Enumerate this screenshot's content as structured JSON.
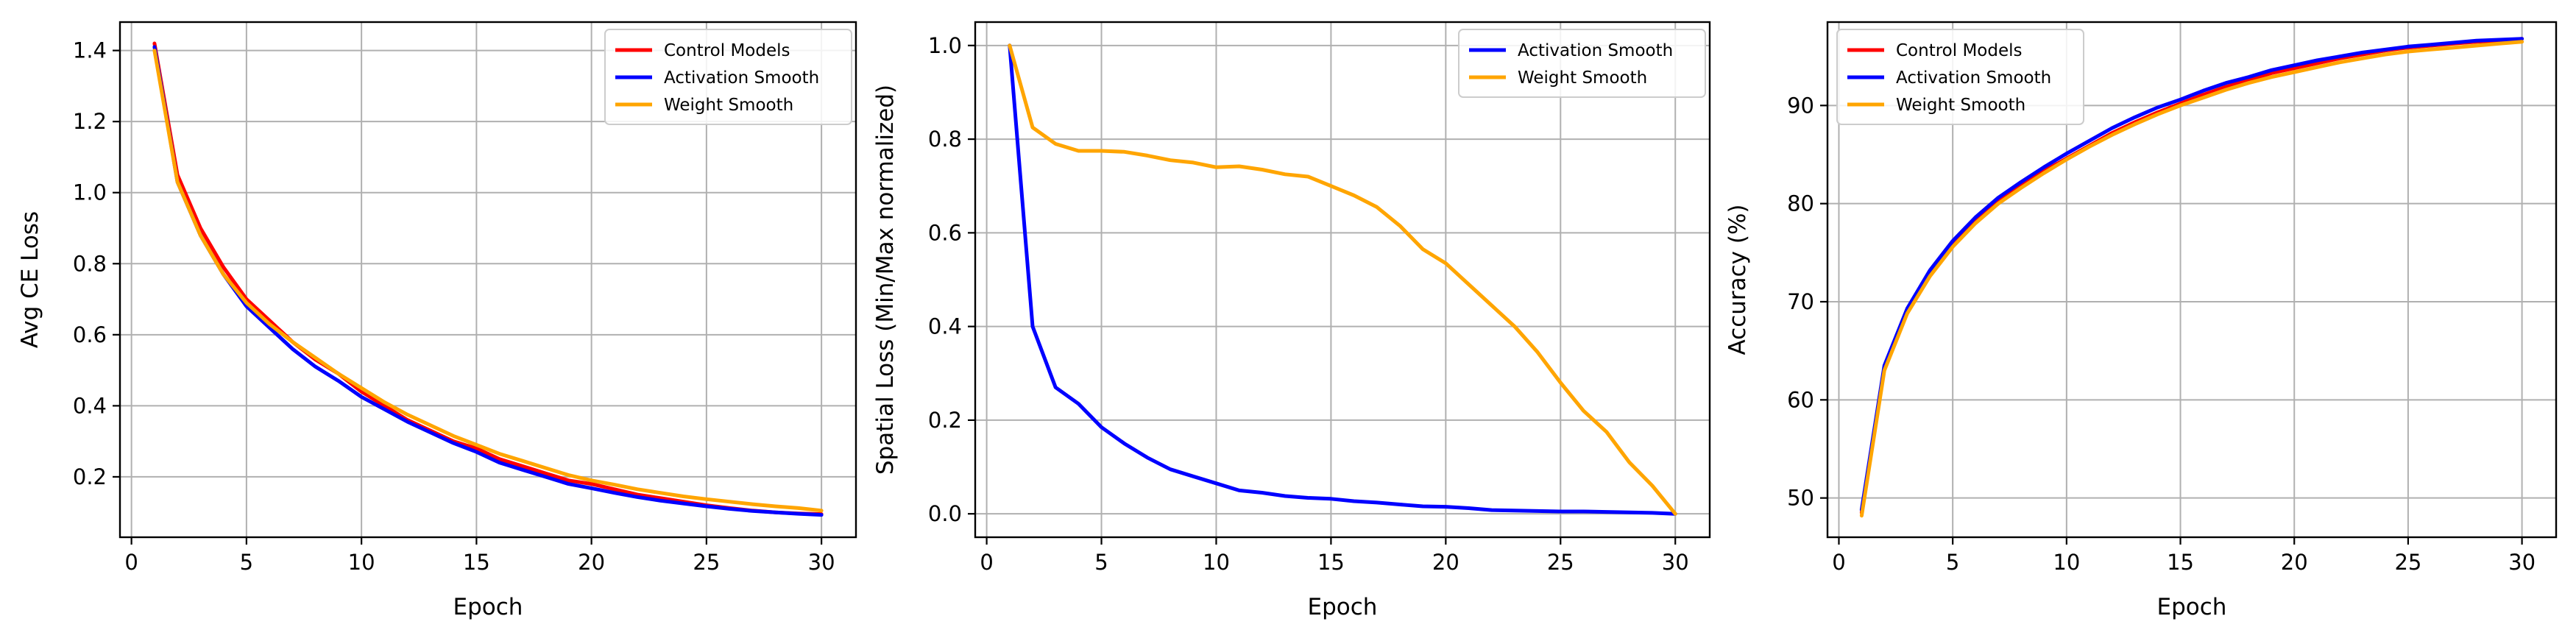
{
  "chart_data": [
    {
      "type": "line",
      "xlabel": "Epoch",
      "ylabel": "Avg CE Loss",
      "xlim": [
        -0.5,
        31.5
      ],
      "ylim": [
        0.03,
        1.48
      ],
      "xticks": [
        0,
        5,
        10,
        15,
        20,
        25,
        30
      ],
      "yticks": [
        0.2,
        0.4,
        0.6,
        0.8,
        1.0,
        1.2,
        1.4
      ],
      "ytick_decimals": 1,
      "grid": true,
      "legend_position": "upper right",
      "x": [
        1,
        2,
        3,
        4,
        5,
        6,
        7,
        8,
        9,
        10,
        11,
        12,
        13,
        14,
        15,
        16,
        17,
        18,
        19,
        20,
        21,
        22,
        23,
        24,
        25,
        26,
        27,
        28,
        29,
        30
      ],
      "series": [
        {
          "name": "Control Models",
          "color": "#ff0000",
          "values": [
            1.42,
            1.05,
            0.9,
            0.79,
            0.7,
            0.64,
            0.58,
            0.53,
            0.49,
            0.44,
            0.4,
            0.36,
            0.33,
            0.3,
            0.28,
            0.25,
            0.23,
            0.21,
            0.19,
            0.18,
            0.165,
            0.15,
            0.14,
            0.13,
            0.12,
            0.112,
            0.105,
            0.1,
            0.097,
            0.095
          ]
        },
        {
          "name": "Activation Smooth",
          "color": "#0000ff",
          "values": [
            1.41,
            1.03,
            0.88,
            0.77,
            0.68,
            0.62,
            0.56,
            0.51,
            0.47,
            0.425,
            0.39,
            0.355,
            0.325,
            0.295,
            0.27,
            0.24,
            0.22,
            0.2,
            0.18,
            0.168,
            0.155,
            0.143,
            0.133,
            0.125,
            0.117,
            0.11,
            0.104,
            0.1,
            0.096,
            0.093
          ]
        },
        {
          "name": "Weight Smooth",
          "color": "#ffa500",
          "values": [
            1.4,
            1.03,
            0.88,
            0.77,
            0.69,
            0.63,
            0.58,
            0.535,
            0.49,
            0.45,
            0.41,
            0.375,
            0.345,
            0.315,
            0.29,
            0.265,
            0.245,
            0.225,
            0.205,
            0.19,
            0.178,
            0.165,
            0.155,
            0.145,
            0.137,
            0.13,
            0.123,
            0.117,
            0.112,
            0.105
          ]
        }
      ]
    },
    {
      "type": "line",
      "xlabel": "Epoch",
      "ylabel": "Spatial Loss (Min/Max normalized)",
      "xlim": [
        -0.5,
        31.5
      ],
      "ylim": [
        -0.05,
        1.05
      ],
      "xticks": [
        0,
        5,
        10,
        15,
        20,
        25,
        30
      ],
      "yticks": [
        0.0,
        0.2,
        0.4,
        0.6,
        0.8,
        1.0
      ],
      "ytick_decimals": 1,
      "grid": true,
      "legend_position": "upper right",
      "x": [
        1,
        2,
        3,
        4,
        5,
        6,
        7,
        8,
        9,
        10,
        11,
        12,
        13,
        14,
        15,
        16,
        17,
        18,
        19,
        20,
        21,
        22,
        23,
        24,
        25,
        26,
        27,
        28,
        29,
        30
      ],
      "series": [
        {
          "name": "Activation Smooth",
          "color": "#0000ff",
          "values": [
            1.0,
            0.4,
            0.27,
            0.235,
            0.185,
            0.15,
            0.12,
            0.095,
            0.08,
            0.065,
            0.05,
            0.045,
            0.038,
            0.034,
            0.032,
            0.027,
            0.024,
            0.02,
            0.016,
            0.015,
            0.012,
            0.008,
            0.007,
            0.006,
            0.005,
            0.005,
            0.004,
            0.003,
            0.002,
            0.0
          ]
        },
        {
          "name": "Weight Smooth",
          "color": "#ffa500",
          "values": [
            1.0,
            0.825,
            0.79,
            0.775,
            0.775,
            0.773,
            0.765,
            0.755,
            0.75,
            0.74,
            0.742,
            0.735,
            0.725,
            0.72,
            0.7,
            0.68,
            0.655,
            0.615,
            0.565,
            0.535,
            0.49,
            0.445,
            0.4,
            0.345,
            0.28,
            0.22,
            0.175,
            0.11,
            0.06,
            0.0
          ]
        }
      ]
    },
    {
      "type": "line",
      "xlabel": "Epoch",
      "ylabel": "Accuracy (%)",
      "xlim": [
        -0.5,
        31.5
      ],
      "ylim": [
        46,
        98.5
      ],
      "xticks": [
        0,
        5,
        10,
        15,
        20,
        25,
        30
      ],
      "yticks": [
        50,
        60,
        70,
        80,
        90
      ],
      "ytick_decimals": 0,
      "grid": true,
      "legend_position": "upper left",
      "x": [
        1,
        2,
        3,
        4,
        5,
        6,
        7,
        8,
        9,
        10,
        11,
        12,
        13,
        14,
        15,
        16,
        17,
        18,
        19,
        20,
        21,
        22,
        23,
        24,
        25,
        26,
        27,
        28,
        29,
        30
      ],
      "series": [
        {
          "name": "Control Models",
          "color": "#ff0000",
          "values": [
            48.5,
            63.2,
            69.0,
            72.8,
            75.8,
            78.2,
            80.2,
            81.8,
            83.3,
            84.6,
            85.9,
            87.2,
            88.3,
            89.3,
            90.2,
            91.1,
            91.9,
            92.6,
            93.3,
            93.8,
            94.3,
            94.8,
            95.2,
            95.6,
            95.9,
            96.1,
            96.3,
            96.5,
            96.6,
            96.8
          ]
        },
        {
          "name": "Activation Smooth",
          "color": "#0000ff",
          "values": [
            48.8,
            63.5,
            69.3,
            73.2,
            76.2,
            78.6,
            80.6,
            82.2,
            83.7,
            85.1,
            86.4,
            87.7,
            88.8,
            89.8,
            90.6,
            91.5,
            92.3,
            92.9,
            93.6,
            94.1,
            94.6,
            95.0,
            95.4,
            95.7,
            96.0,
            96.2,
            96.4,
            96.6,
            96.7,
            96.8
          ]
        },
        {
          "name": "Weight Smooth",
          "color": "#ffa500",
          "values": [
            48.2,
            63.0,
            68.8,
            72.6,
            75.6,
            78.0,
            80.0,
            81.6,
            83.1,
            84.5,
            85.8,
            87.0,
            88.1,
            89.1,
            90.0,
            90.8,
            91.6,
            92.3,
            92.9,
            93.4,
            93.9,
            94.4,
            94.8,
            95.2,
            95.5,
            95.7,
            95.9,
            96.1,
            96.3,
            96.5
          ]
        }
      ]
    }
  ]
}
